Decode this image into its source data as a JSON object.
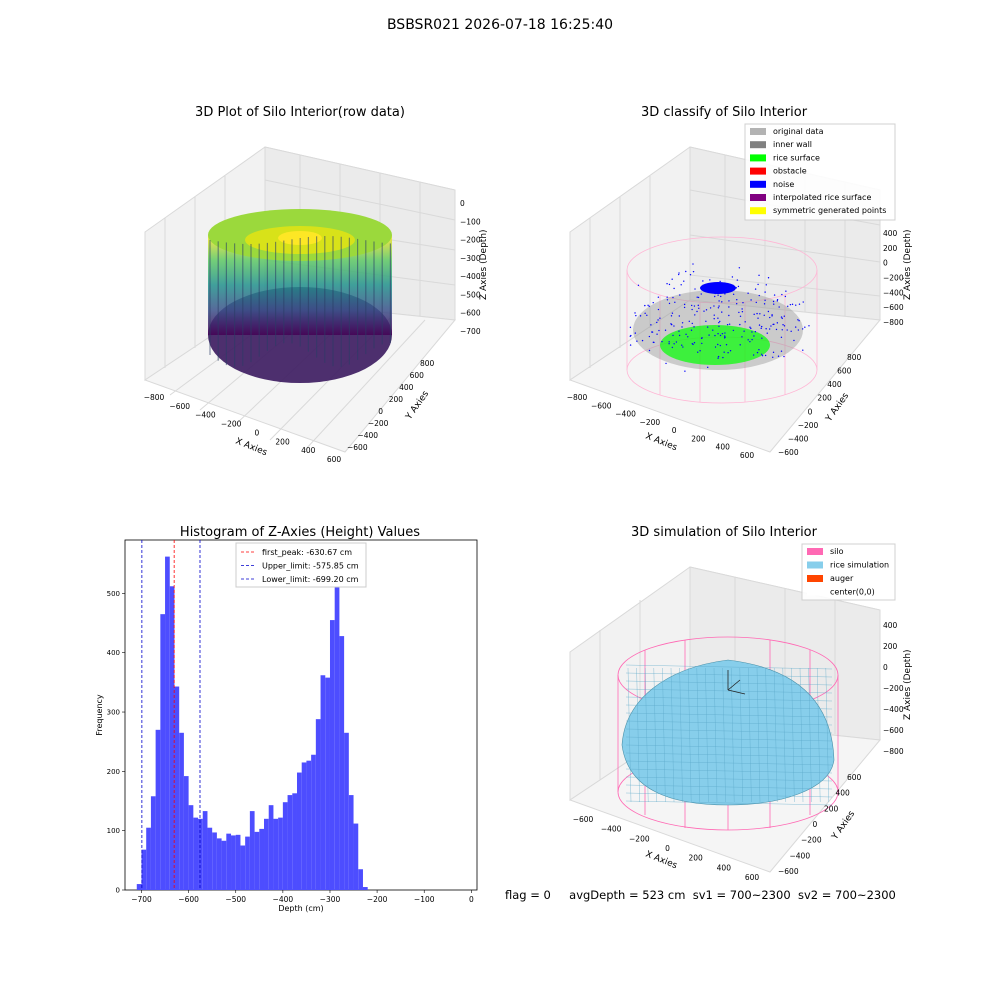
{
  "suptitle": "BSBSR021 2026-07-18 16:25:40",
  "footer": {
    "flag": "flag = 0",
    "avg": "avgDepth = 523 cm",
    "sv1": "sv1 = 700~2300",
    "sv2": "sv2 = 700~2300"
  },
  "colors": {
    "hist": "#4d4dff",
    "first_peak": "#ff0000",
    "limits": "#0000cc",
    "silo": "#ff69b4",
    "rice_sim": "#87ceeb",
    "auger": "#ff4500",
    "noise": "#0000ff",
    "rice_surface": "#00ff00",
    "inner_wall": "#808080"
  },
  "panel1": {
    "title": "3D Plot of Silo Interior(row data)",
    "xlabel": "X Axies",
    "ylabel": "Y Axies",
    "zlabel": "Z Axies (Depth)",
    "xticks": [
      "−800",
      "−600",
      "−400",
      "−200",
      "0",
      "200",
      "400",
      "600"
    ],
    "yticks": [
      "−600",
      "−400",
      "−200",
      "0",
      "200",
      "400",
      "600",
      "800"
    ],
    "zticks": [
      "0",
      "−100",
      "−200",
      "−300",
      "−400",
      "−500",
      "−600",
      "−700"
    ]
  },
  "panel2": {
    "title": "3D classify of Silo Interior",
    "xlabel": "X Axies",
    "ylabel": "Y Axies",
    "zlabel": "Z Axies (Depth)",
    "xticks": [
      "−800",
      "−600",
      "−400",
      "−200",
      "0",
      "200",
      "400",
      "600"
    ],
    "yticks": [
      "−600",
      "−400",
      "−200",
      "0",
      "200",
      "400",
      "600",
      "800"
    ],
    "zticks": [
      "400",
      "200",
      "0",
      "−200",
      "−400",
      "−600",
      "−800"
    ],
    "legend": [
      {
        "label": "original data",
        "color": "#b3b3b3"
      },
      {
        "label": "inner wall",
        "color": "#808080"
      },
      {
        "label": "rice surface",
        "color": "#00ff00"
      },
      {
        "label": "obstacle",
        "color": "#ff0000"
      },
      {
        "label": "noise",
        "color": "#0000ff"
      },
      {
        "label": "interpolated rice surface",
        "color": "#800080"
      },
      {
        "label": "symmetric generated points",
        "color": "#ffff00"
      }
    ]
  },
  "panel4": {
    "title": "3D simulation of Silo Interior",
    "xlabel": "X Axies",
    "ylabel": "Y Axies",
    "zlabel": "Z Axies (Depth)",
    "xticks": [
      "−600",
      "−400",
      "−200",
      "0",
      "200",
      "400",
      "600"
    ],
    "yticks": [
      "−600",
      "−400",
      "−200",
      "0",
      "200",
      "400",
      "600"
    ],
    "zticks": [
      "400",
      "200",
      "0",
      "−200",
      "−400",
      "−600",
      "−800"
    ],
    "legend": [
      {
        "label": "silo",
        "color": "#ff69b4"
      },
      {
        "label": "rice simulation",
        "color": "#87ceeb"
      },
      {
        "label": "auger",
        "color": "#ff4500"
      },
      {
        "label": "center(0,0)",
        "color": "#ffffff"
      }
    ]
  },
  "chart_data": [
    {
      "type": "bar",
      "title": "Histogram of Z-Axies (Height) Values",
      "xlabel": "Depth (cm)",
      "ylabel": "Frequency",
      "xlim": [
        -735,
        12
      ],
      "ylim": [
        0,
        590
      ],
      "xticks": [
        -700,
        -600,
        -500,
        -400,
        -300,
        -200,
        -100,
        0
      ],
      "yticks": [
        0,
        100,
        200,
        300,
        400,
        500
      ],
      "bin_start": -710,
      "bin_width": 10,
      "values": [
        10,
        68,
        105,
        158,
        270,
        465,
        562,
        512,
        343,
        265,
        192,
        143,
        122,
        120,
        133,
        105,
        97,
        87,
        83,
        95,
        92,
        93,
        75,
        90,
        133,
        98,
        103,
        120,
        143,
        120,
        122,
        148,
        160,
        163,
        198,
        215,
        218,
        228,
        288,
        362,
        358,
        455,
        538,
        428,
        265,
        160,
        112,
        35,
        5
      ],
      "vlines": [
        {
          "name": "first_peak",
          "x": -630.67,
          "label": "first_peak: -630.67 cm"
        },
        {
          "name": "upper_limit",
          "x": -575.85,
          "label": "Upper_limit: -575.85 cm"
        },
        {
          "name": "lower_limit",
          "x": -699.2,
          "label": "Lower_limit: -699.20 cm"
        }
      ],
      "legend_position": "top-center"
    }
  ]
}
